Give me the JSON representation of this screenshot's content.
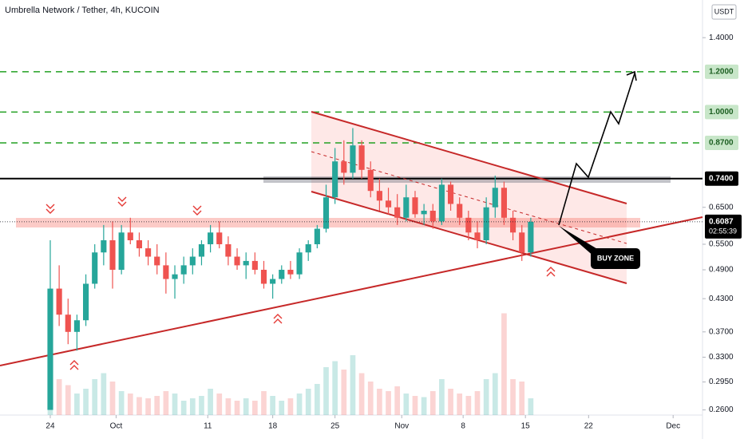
{
  "chart_data": {
    "type": "candlestick",
    "title": "Umbrella Network / Tether, 4h, KUCOIN",
    "currency": "USDT",
    "annotation": "BUY ZONE",
    "log_scale": true,
    "ylim": [
      0.254,
      1.66
    ],
    "yticks": [
      {
        "value": 1.4,
        "label": "1.4000"
      },
      {
        "value": 0.65,
        "label": "0.6500"
      },
      {
        "value": 0.55,
        "label": "0.5500"
      },
      {
        "value": 0.49,
        "label": "0.4900"
      },
      {
        "value": 0.43,
        "label": "0.4300"
      },
      {
        "value": 0.37,
        "label": "0.3700"
      },
      {
        "value": 0.33,
        "label": "0.3300"
      },
      {
        "value": 0.295,
        "label": "0.2950"
      },
      {
        "value": 0.26,
        "label": "0.2600"
      }
    ],
    "levels": [
      {
        "value": 1.2,
        "label": "1.2000",
        "color": "#22a022"
      },
      {
        "value": 1.0,
        "label": "1.0000",
        "color": "#22a022"
      },
      {
        "value": 0.87,
        "label": "0.8700",
        "color": "#22a022"
      },
      {
        "value": 0.74,
        "label": "0.7400",
        "color": "#000000"
      }
    ],
    "last_price": {
      "value": 0.6087,
      "label": "0.6087",
      "countdown": "02:55:39"
    },
    "xlim": [
      -5.65,
      73.3
    ],
    "xticks": [
      {
        "value": 0,
        "label": "24"
      },
      {
        "value": 7.4,
        "label": "Oct"
      },
      {
        "value": 17.7,
        "label": "11"
      },
      {
        "value": 25,
        "label": "18"
      },
      {
        "value": 32,
        "label": "25"
      },
      {
        "value": 39.5,
        "label": "Nov"
      },
      {
        "value": 46.4,
        "label": "8"
      },
      {
        "value": 53.4,
        "label": "15"
      },
      {
        "value": 60.5,
        "label": "22"
      },
      {
        "value": 70,
        "label": "Dec"
      }
    ],
    "up_color": "#26a69a",
    "down_color": "#ef5350",
    "x": [
      0,
      1,
      2,
      3,
      4,
      5,
      6,
      7,
      8,
      9,
      10,
      11,
      12,
      13,
      14,
      15,
      16,
      17,
      18,
      19,
      20,
      21,
      22,
      23,
      24,
      25,
      26,
      27,
      28,
      29,
      30,
      31,
      32,
      33,
      34,
      35,
      36,
      37,
      38,
      39,
      40,
      41,
      42,
      43,
      44,
      45,
      46,
      47,
      48,
      49,
      50,
      51,
      52,
      53,
      54
    ],
    "open": [
      0.26,
      0.45,
      0.4,
      0.37,
      0.39,
      0.46,
      0.53,
      0.56,
      0.49,
      0.58,
      0.56,
      0.54,
      0.52,
      0.5,
      0.47,
      0.48,
      0.5,
      0.52,
      0.55,
      0.58,
      0.55,
      0.52,
      0.5,
      0.51,
      0.49,
      0.46,
      0.47,
      0.49,
      0.48,
      0.53,
      0.55,
      0.59,
      0.68,
      0.8,
      0.76,
      0.86,
      0.77,
      0.7,
      0.67,
      0.65,
      0.62,
      0.68,
      0.63,
      0.64,
      0.61,
      0.72,
      0.66,
      0.62,
      0.58,
      0.56,
      0.65,
      0.71,
      0.62,
      0.58,
      0.53
    ],
    "high": [
      0.56,
      0.5,
      0.43,
      0.4,
      0.48,
      0.55,
      0.6,
      0.61,
      0.6,
      0.62,
      0.58,
      0.56,
      0.55,
      0.53,
      0.5,
      0.52,
      0.54,
      0.56,
      0.6,
      0.61,
      0.57,
      0.54,
      0.53,
      0.53,
      0.51,
      0.48,
      0.5,
      0.51,
      0.54,
      0.56,
      0.6,
      0.72,
      0.85,
      0.88,
      0.93,
      0.88,
      0.8,
      0.74,
      0.71,
      0.69,
      0.72,
      0.7,
      0.66,
      0.66,
      0.74,
      0.73,
      0.68,
      0.64,
      0.61,
      0.68,
      0.75,
      0.73,
      0.64,
      0.6,
      0.62
    ],
    "low": [
      0.26,
      0.38,
      0.35,
      0.34,
      0.38,
      0.45,
      0.5,
      0.45,
      0.48,
      0.55,
      0.52,
      0.5,
      0.48,
      0.44,
      0.43,
      0.46,
      0.48,
      0.5,
      0.53,
      0.54,
      0.5,
      0.49,
      0.47,
      0.48,
      0.45,
      0.43,
      0.46,
      0.47,
      0.47,
      0.51,
      0.54,
      0.58,
      0.66,
      0.72,
      0.74,
      0.74,
      0.68,
      0.64,
      0.63,
      0.6,
      0.61,
      0.62,
      0.6,
      0.59,
      0.6,
      0.64,
      0.6,
      0.56,
      0.54,
      0.55,
      0.62,
      0.6,
      0.56,
      0.51,
      0.52
    ],
    "close": [
      0.45,
      0.4,
      0.37,
      0.39,
      0.46,
      0.53,
      0.56,
      0.49,
      0.58,
      0.56,
      0.54,
      0.52,
      0.5,
      0.47,
      0.48,
      0.5,
      0.52,
      0.55,
      0.58,
      0.55,
      0.52,
      0.5,
      0.51,
      0.49,
      0.46,
      0.47,
      0.49,
      0.48,
      0.53,
      0.55,
      0.59,
      0.68,
      0.8,
      0.76,
      0.86,
      0.77,
      0.7,
      0.67,
      0.65,
      0.62,
      0.68,
      0.63,
      0.64,
      0.61,
      0.72,
      0.66,
      0.62,
      0.58,
      0.56,
      0.65,
      0.71,
      0.62,
      0.58,
      0.53,
      0.6087
    ],
    "volume": [
      60,
      30,
      25,
      18,
      22,
      30,
      35,
      28,
      20,
      18,
      15,
      14,
      16,
      20,
      18,
      12,
      14,
      16,
      22,
      18,
      14,
      12,
      14,
      12,
      20,
      16,
      12,
      14,
      18,
      22,
      26,
      40,
      45,
      38,
      50,
      35,
      28,
      22,
      20,
      24,
      18,
      16,
      15,
      20,
      30,
      22,
      18,
      16,
      20,
      30,
      35,
      85,
      30,
      28,
      14
    ],
    "volume_lim": [
      0,
      100
    ]
  }
}
